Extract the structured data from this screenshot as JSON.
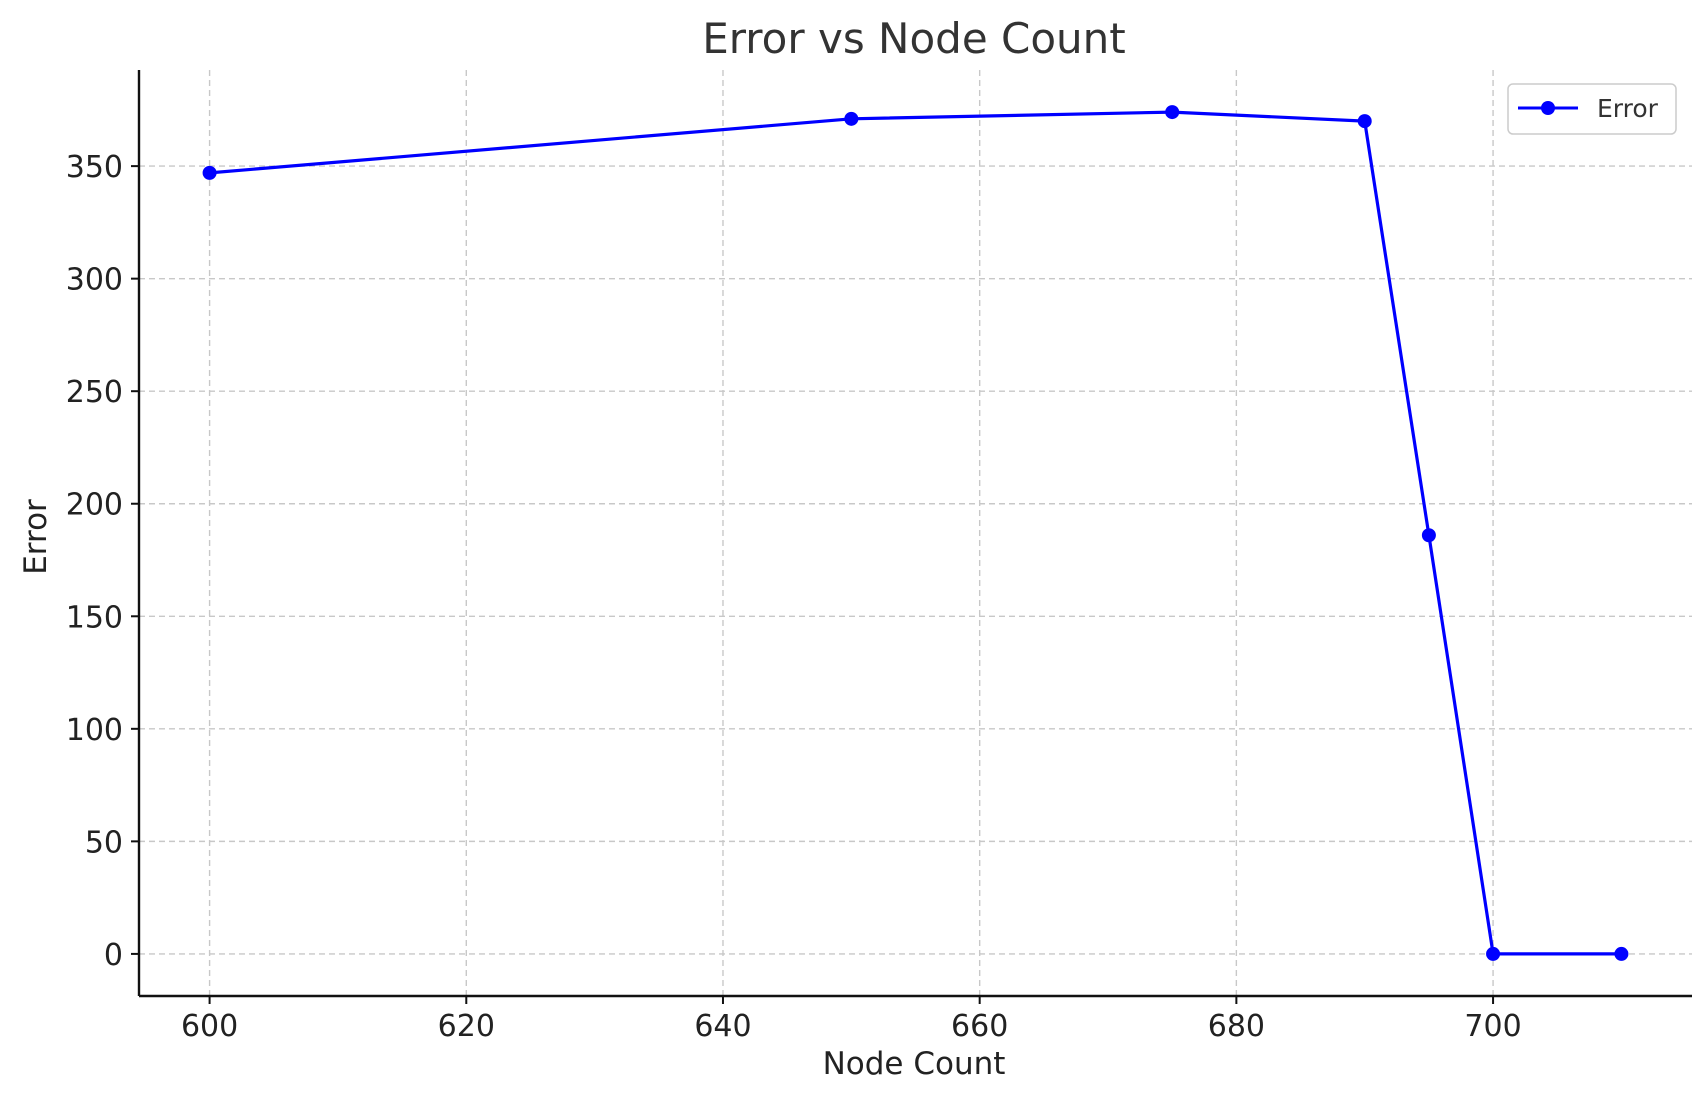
{
  "chart_data": {
    "type": "line",
    "title": "Error vs Node Count",
    "xlabel": "Node Count",
    "ylabel": "Error",
    "xlim": [
      594.5,
      715.5
    ],
    "ylim": [
      -18.7,
      392.7
    ],
    "xticks": [
      600,
      620,
      640,
      660,
      680,
      700
    ],
    "yticks": [
      0,
      50,
      100,
      150,
      200,
      250,
      300,
      350
    ],
    "grid": true,
    "legend_position": "top-right",
    "series": [
      {
        "name": "Error",
        "color": "#0000ff",
        "marker": "circle",
        "x": [
          600,
          650,
          675,
          690,
          695,
          700,
          710
        ],
        "y": [
          347,
          371,
          374,
          370,
          186,
          0,
          0
        ]
      }
    ]
  }
}
